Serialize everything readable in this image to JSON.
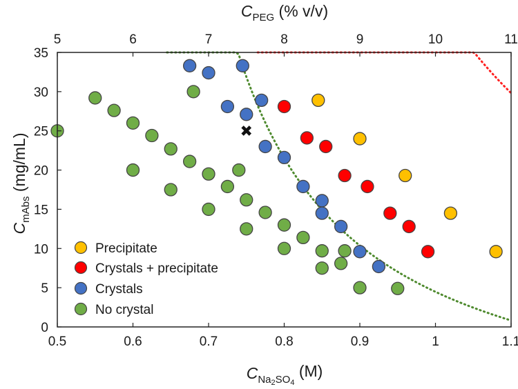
{
  "chart_data": {
    "type": "scatter",
    "x_axis_bottom": {
      "label_main": "C",
      "label_sub": "Na",
      "label_sub2": "2",
      "label_mid": "SO",
      "label_sub3": "4",
      "label_unit": " (M)",
      "range": [
        0.5,
        1.1
      ],
      "ticks": [
        "0.5",
        "0.6",
        "0.7",
        "0.8",
        "0.9",
        "1",
        "1.1"
      ]
    },
    "x_axis_top": {
      "label_main": "C",
      "label_sub": "PEG",
      "label_unit": " (% v/v)",
      "range": [
        5,
        11
      ],
      "ticks": [
        "5",
        "6",
        "7",
        "8",
        "9",
        "10",
        "11"
      ]
    },
    "y_axis": {
      "label_main": "C",
      "label_sub": "mAbs",
      "label_unit": " (mg/mL)",
      "range": [
        0,
        35
      ],
      "ticks": [
        "0",
        "5",
        "10",
        "15",
        "20",
        "25",
        "30",
        "35"
      ]
    },
    "series": [
      {
        "name": "Precipitate",
        "color": "#FFC000",
        "points": [
          [
            0.845,
            28.9
          ],
          [
            0.9,
            24.0
          ],
          [
            0.96,
            19.3
          ],
          [
            1.02,
            14.5
          ],
          [
            1.08,
            9.6
          ]
        ]
      },
      {
        "name": "Crystals + precipitate",
        "color": "#FF0000",
        "points": [
          [
            0.8,
            28.1
          ],
          [
            0.83,
            24.1
          ],
          [
            0.855,
            23.0
          ],
          [
            0.88,
            19.3
          ],
          [
            0.91,
            17.9
          ],
          [
            0.94,
            14.5
          ],
          [
            0.965,
            12.8
          ],
          [
            0.99,
            9.6
          ]
        ]
      },
      {
        "name": "Crystals",
        "color": "#4472C4",
        "points": [
          [
            0.675,
            33.3
          ],
          [
            0.7,
            32.4
          ],
          [
            0.745,
            33.3
          ],
          [
            0.725,
            28.1
          ],
          [
            0.75,
            27.1
          ],
          [
            0.77,
            28.9
          ],
          [
            0.775,
            23.0
          ],
          [
            0.8,
            21.6
          ],
          [
            0.825,
            17.9
          ],
          [
            0.85,
            16.1
          ],
          [
            0.85,
            14.5
          ],
          [
            0.875,
            12.8
          ],
          [
            0.9,
            9.6
          ],
          [
            0.925,
            7.7
          ]
        ]
      },
      {
        "name": "No crystal",
        "color": "#70AD47",
        "points": [
          [
            0.5,
            25.0
          ],
          [
            0.55,
            29.2
          ],
          [
            0.575,
            27.6
          ],
          [
            0.6,
            26.0
          ],
          [
            0.625,
            24.4
          ],
          [
            0.65,
            22.7
          ],
          [
            0.675,
            21.1
          ],
          [
            0.7,
            19.5
          ],
          [
            0.725,
            17.9
          ],
          [
            0.74,
            20.0
          ],
          [
            0.6,
            20.0
          ],
          [
            0.65,
            17.5
          ],
          [
            0.7,
            15.0
          ],
          [
            0.68,
            30.0
          ],
          [
            0.75,
            16.2
          ],
          [
            0.775,
            14.6
          ],
          [
            0.75,
            12.5
          ],
          [
            0.8,
            13.0
          ],
          [
            0.825,
            11.4
          ],
          [
            0.8,
            10.0
          ],
          [
            0.85,
            9.7
          ],
          [
            0.88,
            9.7
          ],
          [
            0.875,
            8.1
          ],
          [
            0.85,
            7.5
          ],
          [
            0.9,
            5.0
          ],
          [
            0.95,
            4.9
          ]
        ]
      }
    ],
    "marker": {
      "name": "target",
      "symbol": "✖",
      "x": 0.75,
      "y": 25.0
    },
    "curves": [
      {
        "name": "red-boundary-curve",
        "color": "#FF2020",
        "x_start": 0.765,
        "x_end": 1.1,
        "k": 21.5,
        "x0": 0.625
      },
      {
        "name": "green-boundary-curve",
        "color": "#4E8A2E",
        "x_start": 0.645,
        "x_end": 1.1,
        "k": 8.15,
        "x0": 0.575
      }
    ],
    "legend": {
      "position": "bottom-left",
      "items": [
        "Precipitate",
        "Crystals + precipitate",
        "Crystals",
        "No crystal"
      ]
    }
  }
}
